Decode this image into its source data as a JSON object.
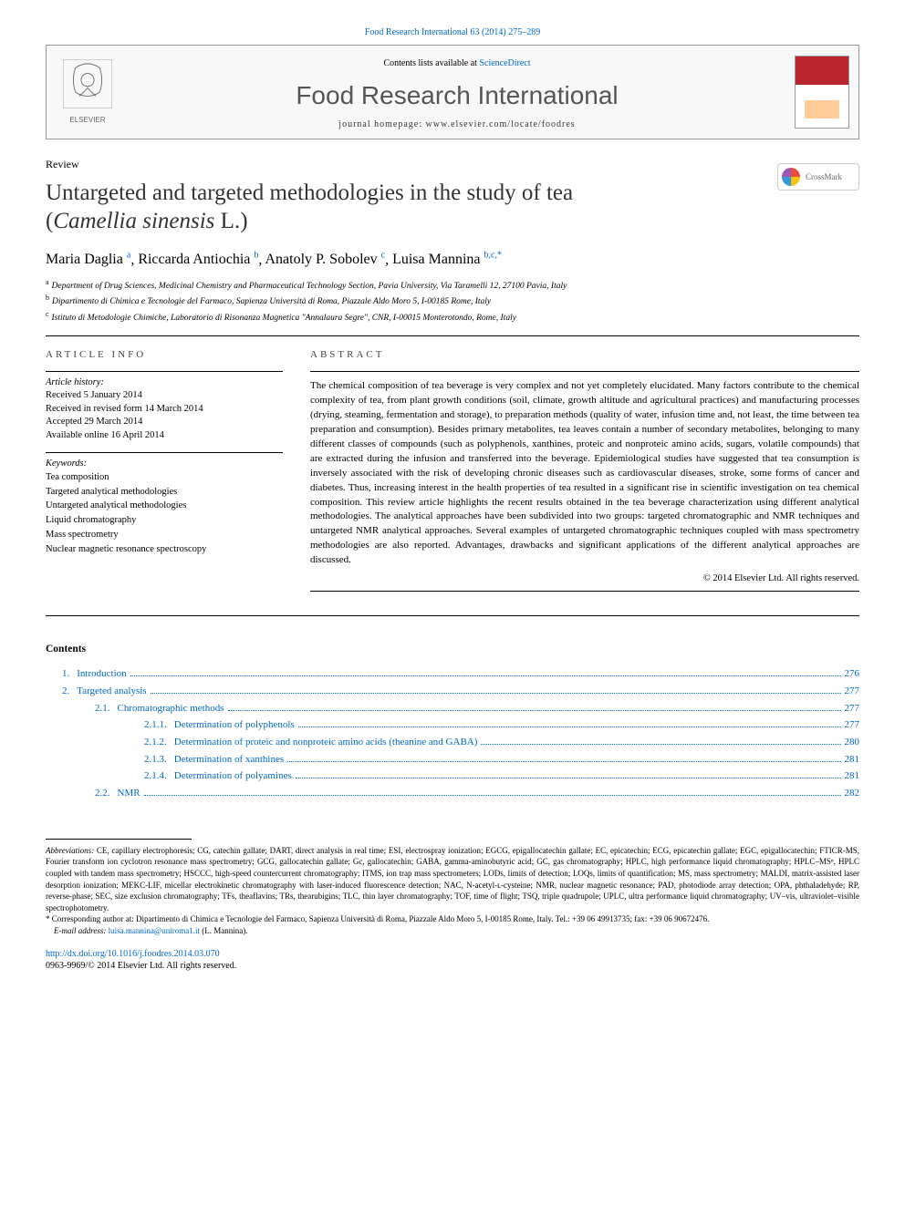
{
  "citation": "Food Research International 63 (2014) 275–289",
  "header": {
    "contents_prefix": "Contents lists available at ",
    "contents_link": "ScienceDirect",
    "journal_title": "Food Research International",
    "homepage_prefix": "journal homepage: ",
    "homepage_url": "www.elsevier.com/locate/foodres",
    "publisher": "ELSEVIER"
  },
  "article_type": "Review",
  "title_line1": "Untargeted and targeted methodologies in the study of tea",
  "title_line2_open": "(",
  "title_line2_species": "Camellia sinensis",
  "title_line2_close": " L.)",
  "crossmark": "CrossMark",
  "authors": [
    {
      "name": "Maria Daglia",
      "sup": "a"
    },
    {
      "name": "Riccarda Antiochia",
      "sup": "b"
    },
    {
      "name": "Anatoly P. Sobolev",
      "sup": "c"
    },
    {
      "name": "Luisa Mannina",
      "sup": "b,c,*"
    }
  ],
  "affiliations": [
    {
      "sup": "a",
      "text": "Department of Drug Sciences, Medicinal Chemistry and Pharmaceutical Technology Section, Pavia University, Via Taramelli 12, 27100 Pavia, Italy"
    },
    {
      "sup": "b",
      "text": "Dipartimento di Chimica e Tecnologie del Farmaco, Sapienza Università di Roma, Piazzale Aldo Moro 5, I-00185 Rome, Italy"
    },
    {
      "sup": "c",
      "text": "Istituto di Metodologie Chimiche, Laboratorio di Risonanza Magnetica \"Annalaura Segre\", CNR, I-00015 Monterotondo, Rome, Italy"
    }
  ],
  "info_heading": "ARTICLE INFO",
  "abstract_heading": "ABSTRACT",
  "history_label": "Article history:",
  "history": [
    "Received 5 January 2014",
    "Received in revised form 14 March 2014",
    "Accepted 29 March 2014",
    "Available online 16 April 2014"
  ],
  "keywords_label": "Keywords:",
  "keywords": [
    "Tea composition",
    "Targeted analytical methodologies",
    "Untargeted analytical methodologies",
    "Liquid chromatography",
    "Mass spectrometry",
    "Nuclear magnetic resonance spectroscopy"
  ],
  "abstract": "The chemical composition of tea beverage is very complex and not yet completely elucidated. Many factors contribute to the chemical complexity of tea, from plant growth conditions (soil, climate, growth altitude and agricultural practices) and manufacturing processes (drying, steaming, fermentation and storage), to preparation methods (quality of water, infusion time and, not least, the time between tea preparation and consumption). Besides primary metabolites, tea leaves contain a number of secondary metabolites, belonging to many different classes of compounds (such as polyphenols, xanthines, proteic and nonproteic amino acids, sugars, volatile compounds) that are extracted during the infusion and transferred into the beverage. Epidemiological studies have suggested that tea consumption is inversely associated with the risk of developing chronic diseases such as cardiovascular diseases, stroke, some forms of cancer and diabetes. Thus, increasing interest in the health properties of tea resulted in a significant rise in scientific investigation on tea chemical composition. This review article highlights the recent results obtained in the tea beverage characterization using different analytical methodologies. The analytical approaches have been subdivided into two groups: targeted chromatographic and NMR techniques and untargeted NMR analytical approaches. Several examples of untargeted chromatographic techniques coupled with mass spectrometry methodologies are also reported. Advantages, drawbacks and significant applications of the different analytical approaches are discussed.",
  "copyright": "© 2014 Elsevier Ltd. All rights reserved.",
  "contents_heading": "Contents",
  "toc": [
    {
      "level": 1,
      "num": "1.",
      "label": "Introduction",
      "page": "276"
    },
    {
      "level": 1,
      "num": "2.",
      "label": "Targeted analysis",
      "page": "277"
    },
    {
      "level": 2,
      "num": "2.1.",
      "label": "Chromatographic methods",
      "page": "277"
    },
    {
      "level": 3,
      "num": "2.1.1.",
      "label": "Determination of polyphenols",
      "page": "277"
    },
    {
      "level": 3,
      "num": "2.1.2.",
      "label": "Determination of proteic and nonproteic amino acids (theanine and GABA)",
      "page": "280"
    },
    {
      "level": 3,
      "num": "2.1.3.",
      "label": "Determination of xanthines",
      "page": "281"
    },
    {
      "level": 3,
      "num": "2.1.4.",
      "label": "Determination of polyamines",
      "page": "281"
    },
    {
      "level": 2,
      "num": "2.2.",
      "label": "NMR",
      "page": "282"
    }
  ],
  "abbrev_label": "Abbreviations:",
  "abbreviations": " CE, capillary electrophoresis; CG, catechin gallate; DART, direct analysis in real time; ESI, electrospray ionization; EGCG, epigallocatechin gallate; EC, epicatechin; ECG, epicatechin gallate; EGC, epigallocatechin; FTICR-MS, Fourier transform ion cyclotron resonance mass spectrometry; GCG, gallocatechin gallate; Gc, gallocatechin; GABA, gamma-aminobutyric acid; GC, gas chromatography; HPLC, high performance liquid chromatography; HPLC–MSⁿ, HPLC coupled with tandem mass spectrometry; HSCCC, high-speed countercurrent chromatography; ITMS, ion trap mass spectrometers; LODs, limits of detection; LOQs, limits of quantification; MS, mass spectrometry; MALDI, matrix-assisted laser desorption ionization; MEKC-LIF, micellar electrokinetic chromatography with laser-induced fluorescence detection; NAC, N-acetyl-ʟ-cysteine; NMR, nuclear magnetic resonance; PAD, photodiode array detection; OPA, phthaladehyde; RP, reverse-phase; SEC, size exclusion chromatography; TFs, theaflavins; TRs, thearubigins; TLC, thin layer chromatography; TOF, time of flight; TSQ, triple quadrupole; UPLC, ultra performance liquid chromatography; UV–vis, ultraviolet–visible spectrophotometry.",
  "corresponding": "* Corresponding author at: Dipartimento di Chimica e Tecnologie del Farmaco, Sapienza Università di Roma, Piazzale Aldo Moro 5, I-00185 Rome, Italy. Tel.: +39 06 49913735; fax: +39 06 90672476.",
  "email_label": "E-mail address: ",
  "email": "luisa.mannina@uniroma1.it",
  "email_suffix": " (L. Mannina).",
  "doi_url": "http://dx.doi.org/10.1016/j.foodres.2014.03.070",
  "issn_copyright": "0963-9969/© 2014 Elsevier Ltd. All rights reserved.",
  "colors": {
    "link": "#0066cc",
    "text": "#000000",
    "heading_gray": "#555555",
    "cover_red": "#b8252f",
    "elsevier_orange": "#ff6600"
  }
}
